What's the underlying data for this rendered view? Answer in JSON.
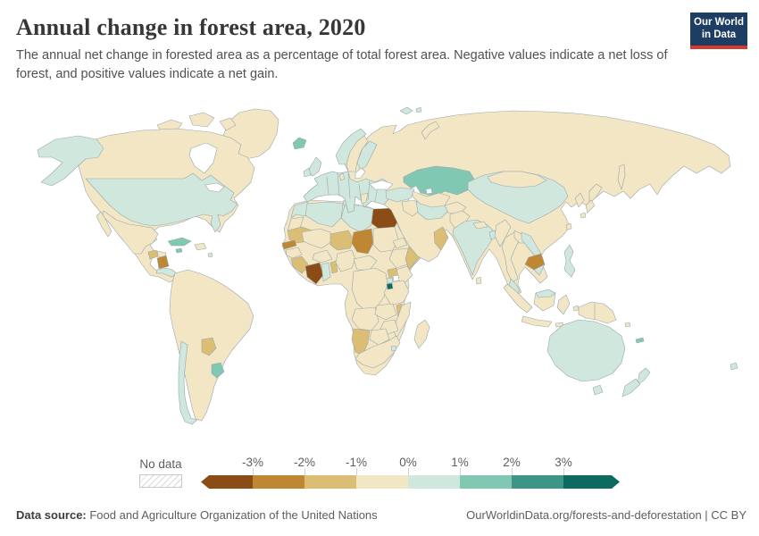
{
  "header": {
    "title": "Annual change in forest area, 2020",
    "subtitle": "The annual net change in forested area as a percentage of total forest area. Negative values indicate a net loss of forest, and positive values indicate a net gain.",
    "logo": {
      "line1": "Our World",
      "line2": "in Data",
      "bg_color": "#1d3d63",
      "accent_color": "#d9382e"
    }
  },
  "legend": {
    "no_data_label": "No data",
    "ticks": [
      "-3%",
      "-2%",
      "-1%",
      "0%",
      "1%",
      "2%",
      "3%"
    ],
    "bucket_labels": [
      "<-3%",
      "-3 to -2%",
      "-2 to -1%",
      "-1 to 0%",
      "0 to 1%",
      "1 to 2%",
      "2 to 3%",
      ">3%"
    ],
    "bucket_colors": [
      "#8c4c16",
      "#bf8734",
      "#dbbe74",
      "#f2e6c4",
      "#cfe7dc",
      "#81c8b3",
      "#3d9488",
      "#0e6a60"
    ]
  },
  "footer": {
    "source_label": "Data source:",
    "source_text": " Food and Agriculture Organization of the United Nations",
    "link_text": "OurWorldinData.org/forests-and-deforestation | CC BY"
  },
  "chart_data": {
    "type": "heatmap",
    "title": "Annual change in forest area, 2020",
    "unit": "% of total forest area per year",
    "legend_range": [
      "-3%",
      "3%"
    ],
    "border_color": "#9aa7ad",
    "palette": {
      "<-3%": "#8c4c16",
      "-3 to -2%": "#bf8734",
      "-2 to -1%": "#dbbe74",
      "-1 to 0%": "#f2e6c4",
      "0 to 1%": "#cfe7dc",
      "1 to 2%": "#81c8b3",
      "2 to 3%": "#3d9488",
      ">3%": "#0e6a60",
      "water": "#ffffff"
    },
    "regions": {
      "greenland": "-1 to 0%",
      "canadian-arctic-islands": "-1 to 0%",
      "canada": "-1 to 0%",
      "alaska": "0 to 1%",
      "usa": "0 to 1%",
      "hudson-bay": "water",
      "great-lakes": "water",
      "mexico": "-1 to 0%",
      "guatemala": "-2 to -1%",
      "honduras": "-1 to 0%",
      "nicaragua": "-3 to -2%",
      "costa-rica-panama": "0 to 1%",
      "cuba": "1 to 2%",
      "jamaica": "1 to 2%",
      "hispaniola": "-1 to 0%",
      "lesser-antilles": "0 to 1%",
      "south-america": "-1 to 0%",
      "chile": "0 to 1%",
      "paraguay": "-2 to -1%",
      "uruguay": "1 to 2%",
      "africa": "-1 to 0%",
      "morocco": "0 to 1%",
      "western-sahara": "-1 to 0%",
      "algeria": "0 to 1%",
      "tunisia": "0 to 1%",
      "libya": "0 to 1%",
      "egypt": "<-3%",
      "mauritania": "-2 to -1%",
      "mali": "-1 to 0%",
      "niger": "-2 to -1%",
      "chad": "-3 to -2%",
      "sudan": "-1 to 0%",
      "senegal": "-3 to -2%",
      "guinea": "-1 to 0%",
      "sierra-leone-liberia": "-2 to -1%",
      "cote-divoire": "<-3%",
      "ghana": "0 to 1%",
      "togo-benin": "-2 to -1%",
      "burkina-faso": "-1 to 0%",
      "nigeria": "-1 to 0%",
      "cameroon-car": "-1 to 0%",
      "eritrea": "-1 to 0%",
      "ethiopia": "-1 to 0%",
      "somalia": "-2 to -1%",
      "kenya": "-1 to 0%",
      "uganda": "-2 to -1%",
      "dr-congo": "-1 to 0%",
      "tanzania": "-1 to 0%",
      "rwanda": "0 to 1%",
      "burundi": ">3%",
      "lake-victoria": "water",
      "angola": "-1 to 0%",
      "zambia": "-1 to 0%",
      "malawi": "-2 to -1%",
      "mozambique": "-1 to 0%",
      "zimbabwe": "-1 to 0%",
      "botswana": "-1 to 0%",
      "namibia": "-2 to -1%",
      "south-africa": "-1 to 0%",
      "eswatini": "0 to 1%",
      "madagascar": "-1 to 0%",
      "eurasia-russia": "-1 to 0%",
      "europe": "0 to 1%",
      "denmark": "-1 to 0%",
      "greece": "-1 to 0%",
      "norway": "0 to 1%",
      "sweden": "-1 to 0%",
      "finland": "0 to 1%",
      "baltic-sea": "water",
      "uk": "0 to 1%",
      "ireland": "0 to 1%",
      "iceland": "1 to 2%",
      "svalbard": "0 to 1%",
      "novaya-zemlya": "-1 to 0%",
      "black-sea": "water",
      "kazakhstan": "1 to 2%",
      "caspian-sea": "water",
      "aral-sea": "water",
      "turkey": "0 to 1%",
      "syria-iraq": "-1 to 0%",
      "iran": "0 to 1%",
      "central-asia": "-1 to 0%",
      "afghanistan": "-1 to 0%",
      "pakistan": "-1 to 0%",
      "oman": "-2 to -1%",
      "india": "0 to 1%",
      "sri-lanka": "-1 to 0%",
      "nepal": "-1 to 0%",
      "bangladesh": "0 to 1%",
      "china": "0 to 1%",
      "mongolia": "-1 to 0%",
      "korea": "-1 to 0%",
      "japan": "-1 to 0%",
      "taiwan": "-1 to 0%",
      "sakhalin": "-1 to 0%",
      "myanmar": "-1 to 0%",
      "thailand": "-1 to 0%",
      "laos": "-1 to 0%",
      "cambodia": "-3 to -2%",
      "vietnam": "0 to 1%",
      "malaysia": "0 to 1%",
      "indonesia": "-1 to 0%",
      "new-guinea": "-1 to 0%",
      "philippines": "0 to 1%",
      "australia": "0 to 1%",
      "new-zealand": "0 to 1%",
      "new-caledonia": "1 to 2%",
      "fiji": "0 to 1%",
      "solomon-islands": "-1 to 0%"
    }
  }
}
